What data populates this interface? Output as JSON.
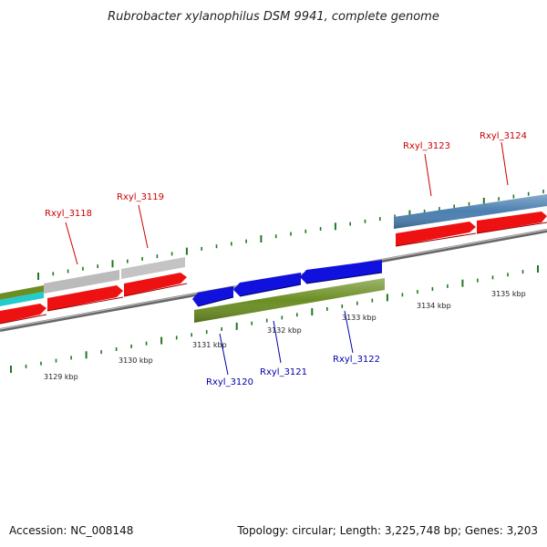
{
  "header": {
    "title": "Rubrobacter xylanophilus DSM 9941, complete genome"
  },
  "footer": {
    "accession": "Accession: NC_008148",
    "summary": "Topology: circular; Length: 3,225,748 bp; Genes: 3,203"
  },
  "scale": {
    "ticks": [
      {
        "label": "3129 kbp"
      },
      {
        "label": "3130 kbp"
      },
      {
        "label": "3131 kbp"
      },
      {
        "label": "3132 kbp"
      },
      {
        "label": "3133 kbp"
      },
      {
        "label": "3134 kbp"
      },
      {
        "label": "3135 kbp"
      }
    ]
  },
  "genes": {
    "forward": [
      {
        "label": "Rxyl_3118"
      },
      {
        "label": "Rxyl_3119"
      },
      {
        "label": "Rxyl_3123"
      },
      {
        "label": "Rxyl_3124"
      }
    ],
    "reverse": [
      {
        "label": "Rxyl_3120"
      },
      {
        "label": "Rxyl_3121"
      },
      {
        "label": "Rxyl_3122"
      }
    ]
  },
  "colors": {
    "forward_label": "#cc0000",
    "reverse_label": "#0000aa",
    "cds_red": "#ee1111",
    "cds_blue": "#1111dd",
    "gene_green": "#6b8e23",
    "gene_grey": "#bbbbbb",
    "gene_steelblue": "#4a7fb0",
    "gene_cyan": "#22cccc",
    "backbone": "#888888",
    "tick_green": "#227722"
  }
}
